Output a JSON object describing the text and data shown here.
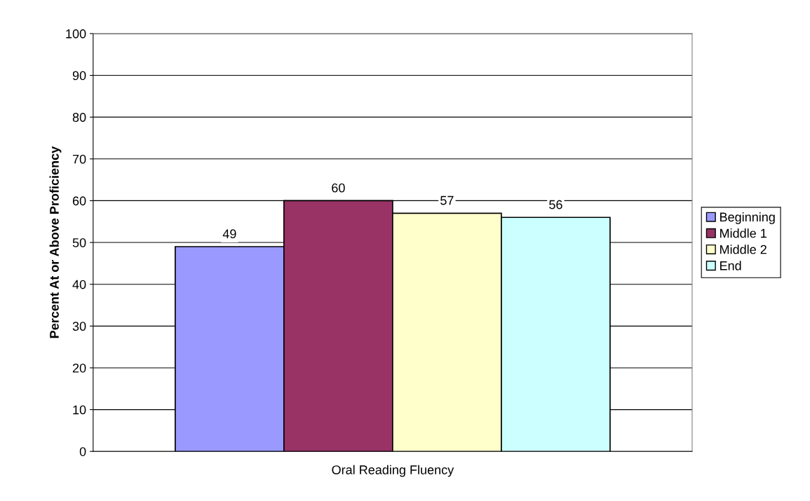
{
  "chart_data": {
    "type": "bar",
    "ylabel": "Percent At or Above Proficiency",
    "categories": [
      "Oral Reading Fluency"
    ],
    "series": [
      {
        "name": "Beginning",
        "color": "#9999ff",
        "values": [
          49
        ]
      },
      {
        "name": "Middle 1",
        "color": "#993366",
        "values": [
          60
        ]
      },
      {
        "name": "Middle 2",
        "color": "#ffffcc",
        "values": [
          57
        ]
      },
      {
        "name": "End",
        "color": "#ccffff",
        "values": [
          56
        ]
      }
    ],
    "ylim": [
      0,
      100
    ],
    "yticks": [
      0,
      10,
      20,
      30,
      40,
      50,
      60,
      70,
      80,
      90,
      100
    ],
    "grid": "y",
    "legend": "right",
    "data_labels": true
  }
}
